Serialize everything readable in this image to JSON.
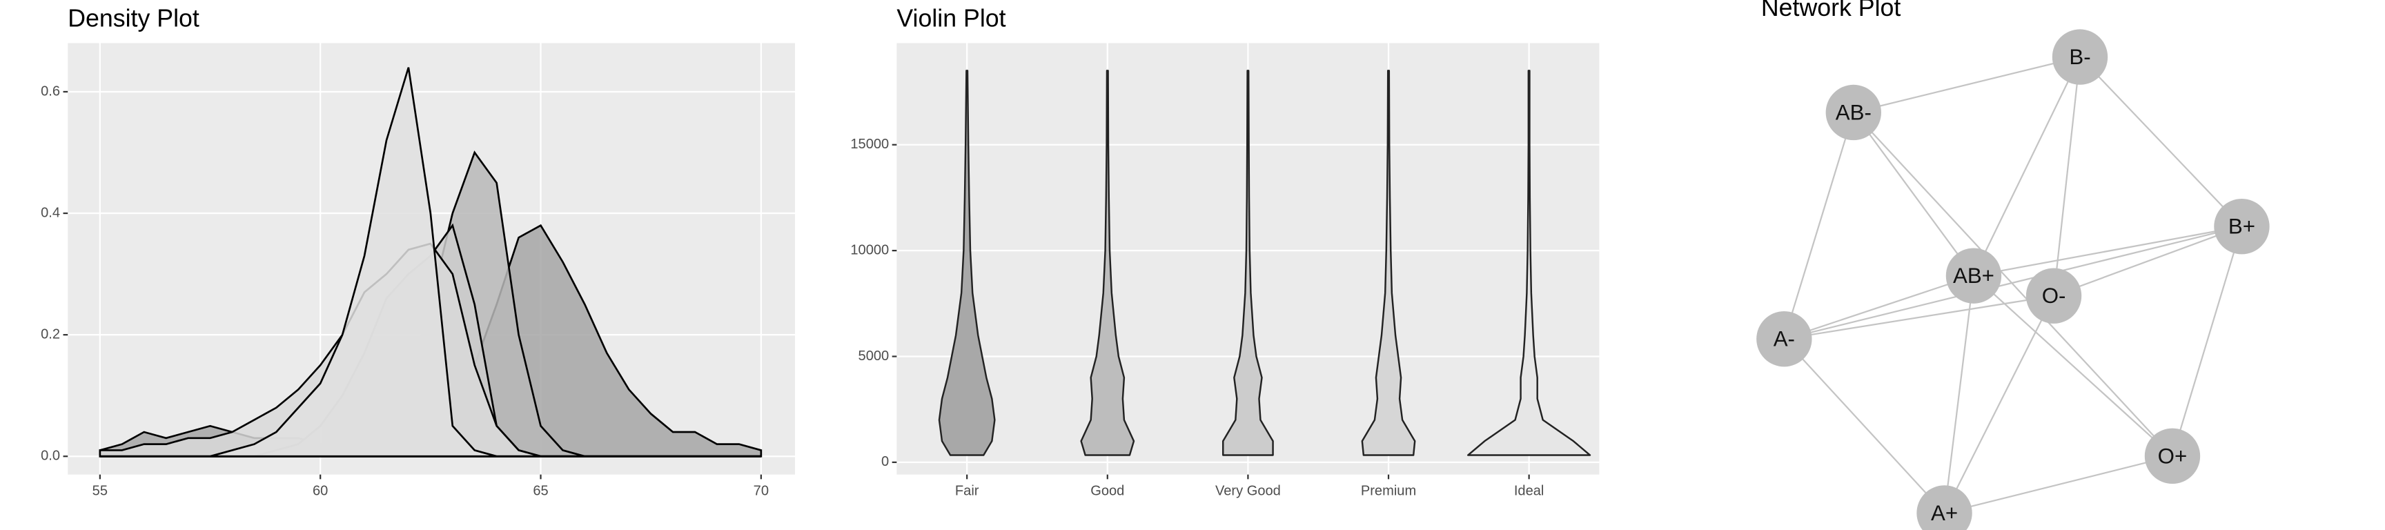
{
  "chart_data": [
    {
      "type": "density",
      "title": "Density Plot",
      "x": [
        55,
        55.5,
        56,
        56.5,
        57,
        57.5,
        58,
        58.5,
        59,
        59.5,
        60,
        60.5,
        61,
        61.5,
        62,
        62.5,
        63,
        63.5,
        64,
        64.5,
        65,
        65.5,
        66,
        66.5,
        67,
        67.5,
        68,
        68.5,
        69,
        69.5,
        70
      ],
      "series": [
        {
          "color": "#a6a6a6",
          "values": [
            0.01,
            0.02,
            0.04,
            0.03,
            0.04,
            0.05,
            0.04,
            0.03,
            0.03,
            0.03,
            0.02,
            0.02,
            0.02,
            0.02,
            0.03,
            0.04,
            0.08,
            0.15,
            0.25,
            0.36,
            0.38,
            0.32,
            0.25,
            0.17,
            0.11,
            0.07,
            0.04,
            0.04,
            0.02,
            0.02,
            0.01
          ]
        },
        {
          "color": "#b8b8b8",
          "values": [
            0,
            0,
            0,
            0,
            0,
            0,
            0,
            0,
            0,
            0,
            0,
            0,
            0.01,
            0.05,
            0.12,
            0.25,
            0.4,
            0.5,
            0.45,
            0.2,
            0.05,
            0.01,
            0,
            0,
            0,
            0,
            0,
            0,
            0,
            0,
            0
          ]
        },
        {
          "color": "#cdcdcd",
          "values": [
            0,
            0,
            0,
            0,
            0,
            0,
            0,
            0,
            0.01,
            0.02,
            0.05,
            0.1,
            0.17,
            0.26,
            0.3,
            0.33,
            0.38,
            0.25,
            0.05,
            0.01,
            0,
            0,
            0,
            0,
            0,
            0,
            0,
            0,
            0,
            0,
            0
          ]
        },
        {
          "color": "#d9d9d9",
          "values": [
            0.01,
            0.01,
            0.02,
            0.02,
            0.03,
            0.03,
            0.04,
            0.06,
            0.08,
            0.11,
            0.15,
            0.2,
            0.27,
            0.3,
            0.34,
            0.35,
            0.3,
            0.15,
            0.05,
            0.01,
            0,
            0,
            0,
            0,
            0,
            0,
            0,
            0,
            0,
            0,
            0
          ]
        },
        {
          "color": "#e0e0e0",
          "values": [
            0,
            0,
            0,
            0,
            0,
            0,
            0.01,
            0.02,
            0.04,
            0.08,
            0.12,
            0.2,
            0.33,
            0.52,
            0.64,
            0.4,
            0.05,
            0.01,
            0,
            0,
            0,
            0,
            0,
            0,
            0,
            0,
            0,
            0,
            0,
            0,
            0
          ]
        }
      ],
      "xlim": [
        54.27,
        70.77
      ],
      "xticks": [
        55,
        60,
        65,
        70
      ],
      "ylim": [
        -0.03,
        0.68
      ],
      "yticks": [
        {
          "value": 0,
          "label": "0.0"
        },
        0.2,
        0.4,
        0.6
      ],
      "grid": true
    },
    {
      "type": "violin",
      "title": "Violin Plot",
      "categories": [
        "Fair",
        "Good",
        "Very Good",
        "Premium",
        "Ideal"
      ],
      "levels": [
        337,
        1000,
        2000,
        3000,
        4000,
        5000,
        6000,
        8000,
        10000,
        12500,
        15000,
        18500
      ],
      "series": [
        {
          "color": "#a8a8a8",
          "widths": [
            0.6,
            0.9,
            1.0,
            0.9,
            0.7,
            0.55,
            0.4,
            0.2,
            0.12,
            0.08,
            0.05,
            0.02
          ]
        },
        {
          "color": "#bdbdbd",
          "widths": [
            0.8,
            0.95,
            0.6,
            0.55,
            0.6,
            0.4,
            0.3,
            0.15,
            0.08,
            0.05,
            0.03,
            0.02
          ]
        },
        {
          "color": "#cccccc",
          "widths": [
            0.9,
            0.9,
            0.45,
            0.4,
            0.5,
            0.3,
            0.2,
            0.1,
            0.06,
            0.04,
            0.03,
            0.02
          ]
        },
        {
          "color": "#d6d6d6",
          "widths": [
            0.9,
            0.95,
            0.5,
            0.4,
            0.45,
            0.35,
            0.25,
            0.12,
            0.08,
            0.05,
            0.03,
            0.02
          ]
        },
        {
          "color": "#e6e6e6",
          "widths": [
            2.2,
            1.6,
            0.5,
            0.3,
            0.3,
            0.2,
            0.15,
            0.08,
            0.05,
            0.03,
            0.02,
            0.02
          ]
        }
      ],
      "ylim": [
        -580,
        19800
      ],
      "yticks": [
        0,
        5000,
        10000,
        15000
      ],
      "grid": true
    },
    {
      "type": "network",
      "title": "Network Plot",
      "nodes": [
        "B-",
        "AB-",
        "B+",
        "AB+",
        "O-",
        "A-",
        "O+",
        "A+"
      ],
      "node_color": "#bdbdbd",
      "edge_color": "#c4c4c4",
      "edges": [
        [
          1,
          0
        ],
        [
          1,
          5
        ],
        [
          1,
          3
        ],
        [
          1,
          6
        ],
        [
          0,
          2
        ],
        [
          0,
          3
        ],
        [
          0,
          4
        ],
        [
          2,
          3
        ],
        [
          2,
          5
        ],
        [
          2,
          4
        ],
        [
          2,
          6
        ],
        [
          3,
          5
        ],
        [
          3,
          7
        ],
        [
          3,
          6
        ],
        [
          4,
          5
        ],
        [
          4,
          7
        ],
        [
          5,
          7
        ],
        [
          7,
          6
        ]
      ]
    }
  ]
}
